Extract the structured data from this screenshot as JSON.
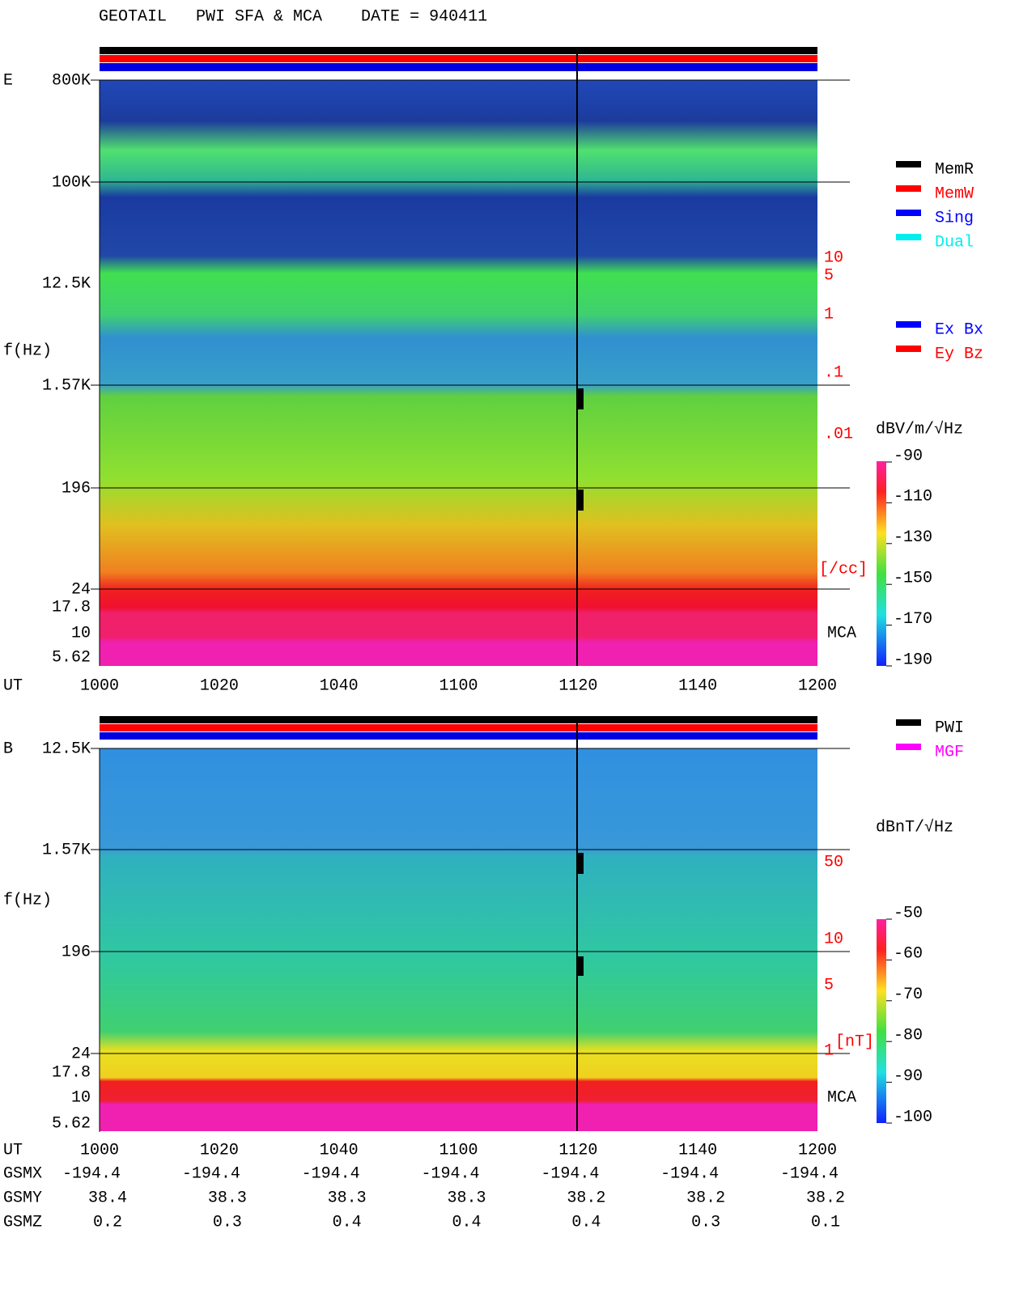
{
  "header": {
    "title": "GEOTAIL   PWI SFA & MCA    DATE = 940411"
  },
  "panels": [
    {
      "label": "E",
      "y_axis_title": "f(Hz)",
      "y_labels": [
        "800K",
        "100K",
        "12.5K",
        "1.57K",
        "196",
        "24",
        "17.8",
        "10",
        "5.62"
      ],
      "x_axis_title": "UT",
      "x_labels": [
        "1000",
        "1020",
        "1040",
        "1100",
        "1120",
        "1140",
        "1200"
      ],
      "right_scale": [
        "10",
        "5",
        "1",
        ".1",
        ".01"
      ],
      "right_unit": "[/cc]",
      "mca": "MCA",
      "colorbar": {
        "unit": "dBV/m/√Hz",
        "ticks": [
          -90,
          -110,
          -130,
          -150,
          -170,
          -190
        ]
      },
      "legend": [
        {
          "name": "MemR",
          "color": "#000000"
        },
        {
          "name": "MemW",
          "color": "#ff0000"
        },
        {
          "name": "Sing",
          "color": "#0000ff"
        },
        {
          "name": "Dual",
          "color": "#00eeee"
        },
        {
          "name": "Ex Bx",
          "color": "#0000ff"
        },
        {
          "name": "Ey Bz",
          "color": "#ff0000"
        }
      ]
    },
    {
      "label": "B",
      "y_axis_title": "f(Hz)",
      "y_labels": [
        "12.5K",
        "1.57K",
        "196",
        "24",
        "17.8",
        "10",
        "5.62"
      ],
      "x_axis_title": "UT",
      "x_labels": [
        "1000",
        "1020",
        "1040",
        "1100",
        "1120",
        "1140",
        "1200"
      ],
      "right_scale": [
        "50",
        "10",
        "5",
        "1"
      ],
      "right_unit": "[nT]",
      "mca": "MCA",
      "colorbar": {
        "unit": "dBnT/√Hz",
        "ticks": [
          -50,
          -60,
          -70,
          -80,
          -90,
          -100
        ]
      },
      "legend": [
        {
          "name": "PWI",
          "color": "#000000"
        },
        {
          "name": "MGF",
          "color": "#ff00ff"
        }
      ]
    }
  ],
  "positions": {
    "rows": [
      {
        "name": "GSMX",
        "values": [
          "-194.4",
          "-194.4",
          "-194.4",
          "-194.4",
          "-194.4",
          "-194.4",
          "-194.4"
        ]
      },
      {
        "name": "GSMY",
        "values": [
          "38.4",
          "38.3",
          "38.3",
          "38.3",
          "38.2",
          "38.2",
          "38.2"
        ]
      },
      {
        "name": "GSMZ",
        "values": [
          "0.2",
          "0.3",
          "0.4",
          "0.4",
          "0.4",
          "0.3",
          "0.1"
        ]
      }
    ]
  }
}
